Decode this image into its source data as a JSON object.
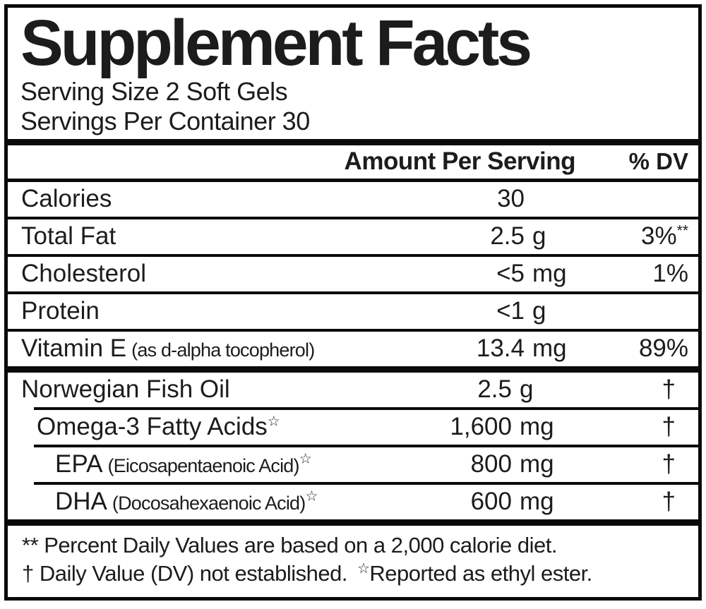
{
  "panel": {
    "title": "Supplement Facts",
    "serving_size": "Serving Size 2 Soft Gels",
    "servings_per_container": "Servings Per Container 30",
    "header": {
      "amount": "Amount Per Serving",
      "dv": "% DV"
    },
    "rows": [
      {
        "label": "Calories",
        "paren": "",
        "star": "",
        "amount": "30",
        "unit": "",
        "dv": "",
        "dv_sup": ""
      },
      {
        "label": "Total Fat",
        "paren": "",
        "star": "",
        "amount": "2.5",
        "unit": "g",
        "dv": "3%",
        "dv_sup": "**"
      },
      {
        "label": "Cholesterol",
        "paren": "",
        "star": "",
        "amount": "<5",
        "unit": "mg",
        "dv": "1%",
        "dv_sup": ""
      },
      {
        "label": "Protein",
        "paren": "",
        "star": "",
        "amount": "<1",
        "unit": "g",
        "dv": "",
        "dv_sup": ""
      },
      {
        "label": "Vitamin E",
        "paren": "(as d-alpha tocopherol)",
        "star": "",
        "amount": "13.4",
        "unit": "mg",
        "dv": "89%",
        "dv_sup": ""
      },
      {
        "label": "Norwegian Fish Oil",
        "paren": "",
        "star": "",
        "amount": "2.5",
        "unit": "g",
        "dv": "†",
        "dv_sup": ""
      },
      {
        "label": "Omega-3 Fatty Acids",
        "paren": "",
        "star": "☆",
        "amount": "1,600",
        "unit": "mg",
        "dv": "†",
        "dv_sup": ""
      },
      {
        "label": "EPA",
        "paren": "(Eicosapentaenoic Acid)",
        "star": "☆",
        "amount": "800",
        "unit": "mg",
        "dv": "†",
        "dv_sup": ""
      },
      {
        "label": "DHA",
        "paren": "(Docosahexaenoic Acid)",
        "star": "☆",
        "amount": "600",
        "unit": "mg",
        "dv": "†",
        "dv_sup": ""
      }
    ],
    "footnotes": {
      "line1": "** Percent Daily Values are based on a 2,000 calorie diet.",
      "line2_prefix": "† Daily Value (DV) not established.",
      "line2_star": "☆",
      "line2_suffix": "Reported as ethyl ester."
    },
    "colors": {
      "text": "#1c1c1c",
      "rule": "#0a0a0a",
      "background": "#ffffff"
    }
  }
}
